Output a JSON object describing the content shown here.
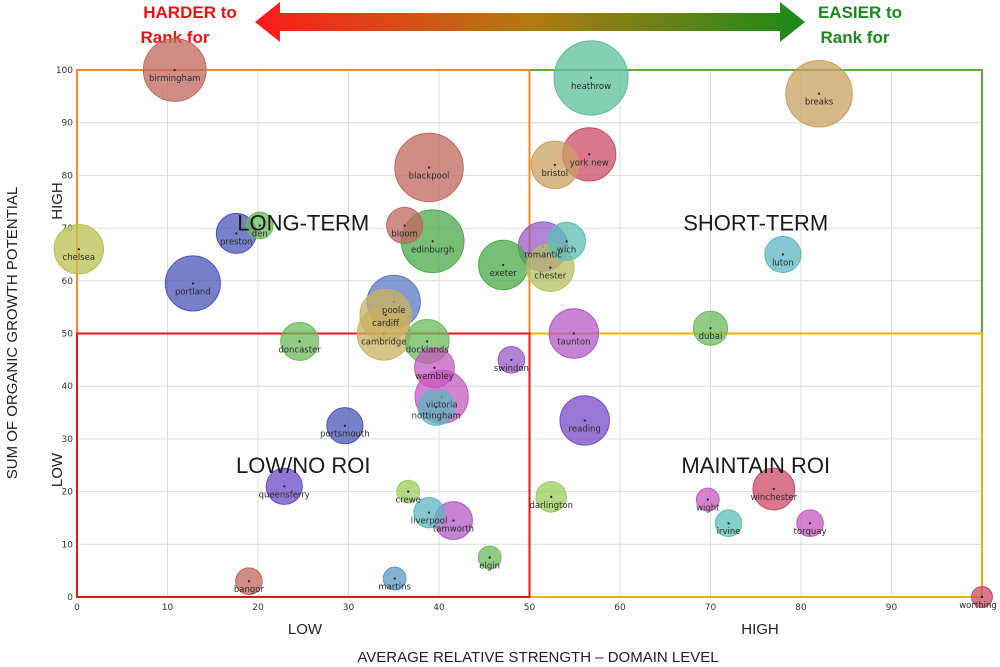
{
  "header": {
    "left_line1": "HARDER to",
    "left_line2": "Rank for",
    "right_line1": "EASIER to",
    "right_line2": "Rank for",
    "left_color": "#ee1111",
    "right_color": "#1a8a1a"
  },
  "chart_data": {
    "type": "scatter",
    "title": "",
    "xlabel": "AVERAGE RELATIVE STRENGTH – DOMAIN LEVEL",
    "ylabel": "SUM OF ORGANIC GROWTH POTENTIAL",
    "x_side_labels": {
      "low": "LOW",
      "high": "HIGH"
    },
    "y_side_labels": {
      "low": "LOW",
      "high": "HIGH"
    },
    "xlim": [
      0,
      100
    ],
    "ylim": [
      0,
      100
    ],
    "x_ticks": [
      0,
      10,
      20,
      30,
      40,
      50,
      60,
      70,
      80,
      90
    ],
    "y_ticks": [
      0,
      10,
      20,
      30,
      40,
      50,
      60,
      70,
      80,
      90,
      100
    ],
    "grid": true,
    "quadrants": [
      {
        "label": "LONG-TERM",
        "x_range": [
          0,
          50
        ],
        "y_range": [
          50,
          100
        ],
        "color": "#f08a2c"
      },
      {
        "label": "SHORT-TERM",
        "x_range": [
          50,
          100
        ],
        "y_range": [
          50,
          100
        ],
        "color": "#5aaa3c"
      },
      {
        "label": "LOW/NO ROI",
        "x_range": [
          0,
          50
        ],
        "y_range": [
          0,
          50
        ],
        "color": "#dd1a1a"
      },
      {
        "label": "MAINTAIN ROI",
        "x_range": [
          50,
          100
        ],
        "y_range": [
          0,
          50
        ],
        "color": "#f0b400"
      }
    ],
    "points": [
      {
        "label": "birmingham",
        "x": 10.8,
        "y": 100,
        "size": 3.3,
        "color": "#c0675c"
      },
      {
        "label": "heathrow",
        "x": 56.8,
        "y": 98.5,
        "size": 3.9,
        "color": "#5cbf9a"
      },
      {
        "label": "breaks",
        "x": 82.0,
        "y": 95.5,
        "size": 3.5,
        "color": "#c9a060"
      },
      {
        "label": "blackpool",
        "x": 38.9,
        "y": 81.5,
        "size": 3.6,
        "color": "#c0675c"
      },
      {
        "label": "york new",
        "x": 56.6,
        "y": 84.0,
        "size": 2.8,
        "color": "#cc4a66"
      },
      {
        "label": "bristol",
        "x": 52.8,
        "y": 82.0,
        "size": 2.5,
        "color": "#c9a060"
      },
      {
        "label": "den",
        "x": 20.2,
        "y": 70.5,
        "size": 1.4,
        "color": "#6cbb5c"
      },
      {
        "label": "preston",
        "x": 17.6,
        "y": 69.0,
        "size": 2.1,
        "color": "#4a55b5"
      },
      {
        "label": "bloom",
        "x": 36.2,
        "y": 70.5,
        "size": 1.9,
        "color": "#c0675c"
      },
      {
        "label": "edinburgh",
        "x": 39.3,
        "y": 67.5,
        "size": 3.3,
        "color": "#4aaa4a"
      },
      {
        "label": "chelsea",
        "x": 0.2,
        "y": 66.0,
        "size": 2.6,
        "color": "#b9c050"
      },
      {
        "label": "romantic",
        "x": 51.5,
        "y": 66.5,
        "size": 2.6,
        "color": "#9a5ac6"
      },
      {
        "label": "wich",
        "x": 54.1,
        "y": 67.5,
        "size": 2.0,
        "color": "#5cbfb5"
      },
      {
        "label": "exeter",
        "x": 47.1,
        "y": 63.0,
        "size": 2.6,
        "color": "#4aaa4a"
      },
      {
        "label": "chester",
        "x": 52.3,
        "y": 62.5,
        "size": 2.5,
        "color": "#b5c060"
      },
      {
        "label": "luton",
        "x": 78.0,
        "y": 65.0,
        "size": 1.9,
        "color": "#5cb5c0"
      },
      {
        "label": "portland",
        "x": 12.8,
        "y": 59.5,
        "size": 2.9,
        "color": "#4a55b5"
      },
      {
        "label": "poole",
        "x": 35.0,
        "y": 56.0,
        "size": 2.8,
        "color": "#5a7ac0"
      },
      {
        "label": "cardiff",
        "x": 34.1,
        "y": 53.5,
        "size": 2.7,
        "color": "#c9b060"
      },
      {
        "label": "cambridge",
        "x": 33.9,
        "y": 50.0,
        "size": 2.8,
        "color": "#c9b060"
      },
      {
        "label": "dubai",
        "x": 70.0,
        "y": 51.0,
        "size": 1.8,
        "color": "#6cbb5c"
      },
      {
        "label": "taunton",
        "x": 54.9,
        "y": 50.0,
        "size": 2.6,
        "color": "#b25ac6"
      },
      {
        "label": "doncaster",
        "x": 24.6,
        "y": 48.5,
        "size": 2.0,
        "color": "#6cbb5c"
      },
      {
        "label": "docklands",
        "x": 38.7,
        "y": 48.5,
        "size": 2.3,
        "color": "#6cbb5c"
      },
      {
        "label": "swindon",
        "x": 48.0,
        "y": 45.0,
        "size": 1.4,
        "color": "#9a5ac6"
      },
      {
        "label": "wembley",
        "x": 39.5,
        "y": 43.5,
        "size": 2.1,
        "color": "#c65ac0"
      },
      {
        "label": "victoria",
        "x": 40.3,
        "y": 38.0,
        "size": 2.8,
        "color": "#c65ac0"
      },
      {
        "label": "nottingham",
        "x": 39.7,
        "y": 36.0,
        "size": 1.9,
        "color": "#5cb5c0"
      },
      {
        "label": "reading",
        "x": 56.1,
        "y": 33.5,
        "size": 2.6,
        "color": "#7a4ac6"
      },
      {
        "label": "portsmouth",
        "x": 29.6,
        "y": 32.5,
        "size": 1.9,
        "color": "#4a55b5"
      },
      {
        "label": "queensferry",
        "x": 22.9,
        "y": 21.0,
        "size": 1.9,
        "color": "#6a4ac6"
      },
      {
        "label": "winchester",
        "x": 77.0,
        "y": 20.5,
        "size": 2.2,
        "color": "#cc4a66"
      },
      {
        "label": "crewe",
        "x": 36.6,
        "y": 20.0,
        "size": 1.2,
        "color": "#9acc5c"
      },
      {
        "label": "darlington",
        "x": 52.4,
        "y": 19.0,
        "size": 1.6,
        "color": "#9acc5c"
      },
      {
        "label": "wight",
        "x": 69.7,
        "y": 18.5,
        "size": 1.2,
        "color": "#c65ac0"
      },
      {
        "label": "liverpool",
        "x": 38.9,
        "y": 16.0,
        "size": 1.6,
        "color": "#5cb5c0"
      },
      {
        "label": "tamworth",
        "x": 41.6,
        "y": 14.5,
        "size": 2.0,
        "color": "#b25ac6"
      },
      {
        "label": "irvine",
        "x": 72.0,
        "y": 14.0,
        "size": 1.4,
        "color": "#5cbfb5"
      },
      {
        "label": "torquay",
        "x": 81.0,
        "y": 14.0,
        "size": 1.4,
        "color": "#c65ac0"
      },
      {
        "label": "elgin",
        "x": 45.6,
        "y": 7.5,
        "size": 1.2,
        "color": "#6cbb5c"
      },
      {
        "label": "martins",
        "x": 35.1,
        "y": 3.5,
        "size": 1.2,
        "color": "#5a9ac0"
      },
      {
        "label": "bangor",
        "x": 19.0,
        "y": 3.0,
        "size": 1.4,
        "color": "#c0675c"
      },
      {
        "label": "worthing",
        "x": 100.0,
        "y": 0.0,
        "size": 1.1,
        "color": "#cc4a66"
      }
    ]
  }
}
